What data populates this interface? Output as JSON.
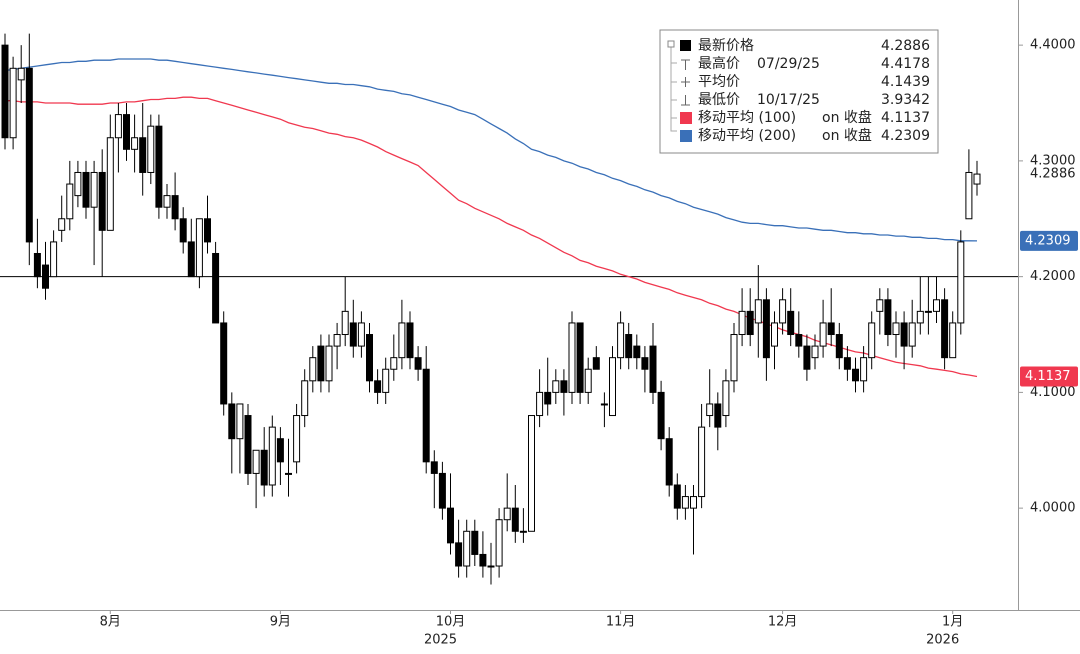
{
  "chart_data": {
    "type": "candlestick",
    "categories": [
      null,
      null,
      null,
      null,
      null,
      null,
      null,
      null,
      null,
      null,
      null,
      null,
      null,
      "8月",
      null,
      null,
      null,
      null,
      null,
      null,
      null,
      null,
      null,
      null,
      null,
      null,
      null,
      null,
      null,
      null,
      null,
      null,
      null,
      null,
      "9月",
      null,
      null,
      null,
      null,
      null,
      null,
      null,
      null,
      null,
      null,
      null,
      null,
      null,
      null,
      null,
      null,
      null,
      null,
      null,
      null,
      "10月",
      null,
      null,
      null,
      null,
      null,
      null,
      null,
      null,
      null,
      null,
      null,
      null,
      null,
      null,
      null,
      null,
      null,
      null,
      null,
      null,
      "11月",
      null,
      null,
      null,
      null,
      null,
      null,
      null,
      null,
      null,
      null,
      null,
      null,
      null,
      null,
      null,
      null,
      null,
      null,
      null,
      "12月",
      null,
      null,
      null,
      null,
      null,
      null,
      null,
      null,
      null,
      null,
      null,
      null,
      null,
      null,
      null,
      null,
      null,
      null,
      null,
      null,
      "1月",
      null,
      null,
      null
    ],
    "year_labels": [
      null,
      null,
      null,
      null,
      null,
      null,
      null,
      null,
      null,
      null,
      null,
      null,
      null,
      null,
      null,
      null,
      null,
      null,
      null,
      null,
      null,
      null,
      null,
      null,
      null,
      null,
      null,
      null,
      null,
      null,
      null,
      null,
      null,
      null,
      null,
      null,
      null,
      null,
      null,
      null,
      null,
      null,
      null,
      null,
      null,
      null,
      null,
      null,
      null,
      null,
      null,
      null,
      null,
      null,
      null,
      "2025",
      null,
      null,
      null,
      null,
      null,
      null,
      null,
      null,
      null,
      null,
      null,
      null,
      null,
      null,
      null,
      null,
      null,
      null,
      null,
      null,
      null,
      null,
      null,
      null,
      null,
      null,
      null,
      null,
      null,
      null,
      null,
      null,
      null,
      null,
      null,
      null,
      null,
      null,
      null,
      null,
      null,
      null,
      null,
      null,
      null,
      null,
      null,
      null,
      null,
      null,
      null,
      null,
      null,
      null,
      null,
      null,
      null,
      null,
      null,
      null,
      null,
      "2026",
      null,
      null,
      null
    ],
    "open": [
      4.4,
      4.32,
      4.37,
      4.38,
      4.22,
      4.21,
      4.2,
      4.24,
      4.25,
      4.27,
      4.29,
      4.26,
      4.29,
      4.24,
      4.32,
      4.34,
      4.31,
      4.32,
      4.29,
      4.33,
      4.26,
      4.27,
      4.25,
      4.23,
      4.2,
      4.25,
      4.22,
      4.16,
      4.09,
      4.06,
      4.08,
      4.03,
      4.05,
      4.02,
      4.06,
      4.03,
      4.04,
      4.08,
      4.11,
      4.14,
      4.11,
      4.14,
      4.15,
      4.16,
      4.14,
      4.15,
      4.11,
      4.1,
      4.12,
      4.13,
      4.16,
      4.13,
      4.12,
      4.04,
      4.03,
      4.0,
      3.97,
      3.95,
      3.98,
      3.96,
      3.95,
      3.95,
      3.99,
      4.0,
      3.98,
      3.98,
      4.08,
      4.1,
      4.1,
      4.11,
      4.1,
      4.16,
      4.1,
      4.13,
      4.09,
      4.08,
      4.13,
      4.15,
      4.14,
      4.13,
      4.14,
      4.1,
      4.06,
      4.02,
      4.0,
      4.0,
      4.01,
      4.08,
      4.09,
      4.08,
      4.11,
      4.15,
      4.17,
      4.16,
      4.18,
      4.14,
      4.16,
      4.17,
      4.15,
      4.14,
      4.13,
      4.14,
      4.16,
      4.15,
      4.13,
      4.12,
      4.11,
      4.13,
      4.17,
      4.18,
      4.15,
      4.16,
      4.14,
      4.16,
      4.17,
      4.17,
      4.18,
      4.13,
      4.16,
      4.25,
      4.28
    ],
    "high": [
      4.41,
      4.39,
      4.4,
      4.41,
      4.25,
      4.23,
      4.24,
      4.27,
      4.3,
      4.3,
      4.3,
      4.3,
      4.31,
      4.34,
      4.35,
      4.35,
      4.34,
      4.35,
      4.34,
      4.34,
      4.28,
      4.29,
      4.26,
      4.25,
      4.25,
      4.27,
      4.23,
      4.17,
      4.1,
      4.09,
      4.09,
      4.05,
      4.07,
      4.08,
      4.07,
      4.06,
      4.09,
      4.12,
      4.14,
      4.15,
      4.15,
      4.16,
      4.2,
      4.18,
      4.17,
      4.16,
      4.12,
      4.13,
      4.15,
      4.18,
      4.17,
      4.14,
      4.14,
      4.05,
      4.04,
      4.03,
      3.99,
      3.99,
      3.99,
      3.98,
      3.97,
      4.0,
      4.03,
      4.02,
      4.0,
      4.08,
      4.12,
      4.13,
      4.12,
      4.12,
      4.17,
      4.16,
      4.13,
      4.14,
      4.1,
      4.14,
      4.17,
      4.16,
      4.15,
      4.14,
      4.16,
      4.11,
      4.07,
      4.03,
      4.02,
      4.02,
      4.09,
      4.12,
      4.1,
      4.12,
      4.16,
      4.19,
      4.19,
      4.21,
      4.19,
      4.17,
      4.19,
      4.19,
      4.17,
      4.15,
      4.15,
      4.18,
      4.19,
      4.16,
      4.14,
      4.13,
      4.14,
      4.17,
      4.19,
      4.19,
      4.17,
      4.17,
      4.18,
      4.2,
      4.2,
      4.2,
      4.19,
      4.17,
      4.24,
      4.31,
      4.3
    ],
    "low": [
      4.31,
      4.31,
      4.35,
      4.21,
      4.19,
      4.18,
      4.2,
      4.23,
      4.24,
      4.26,
      4.25,
      4.21,
      4.2,
      4.24,
      4.29,
      4.3,
      4.29,
      4.27,
      4.28,
      4.25,
      4.25,
      4.24,
      4.22,
      4.2,
      4.19,
      4.22,
      4.16,
      4.08,
      4.03,
      4.03,
      4.02,
      4.0,
      4.01,
      4.01,
      4.02,
      4.01,
      4.03,
      4.07,
      4.1,
      4.1,
      4.1,
      4.12,
      4.14,
      4.13,
      4.13,
      4.1,
      4.09,
      4.09,
      4.11,
      4.12,
      4.12,
      4.11,
      4.03,
      4.0,
      3.99,
      3.96,
      3.94,
      3.94,
      3.95,
      3.94,
      3.934,
      3.94,
      3.98,
      3.97,
      3.97,
      3.98,
      4.07,
      4.08,
      4.09,
      4.08,
      4.09,
      4.09,
      4.09,
      4.12,
      4.07,
      4.08,
      4.12,
      4.12,
      4.12,
      4.1,
      4.09,
      4.05,
      4.01,
      3.99,
      3.99,
      3.96,
      4.0,
      4.07,
      4.05,
      4.07,
      4.1,
      4.14,
      4.14,
      4.13,
      4.11,
      4.12,
      4.15,
      4.14,
      4.13,
      4.11,
      4.12,
      4.13,
      4.14,
      4.12,
      4.11,
      4.1,
      4.1,
      4.12,
      4.15,
      4.14,
      4.13,
      4.12,
      4.13,
      4.15,
      4.15,
      4.16,
      4.12,
      4.13,
      4.15,
      4.25,
      4.27
    ],
    "close": [
      4.32,
      4.38,
      4.38,
      4.23,
      4.2,
      4.19,
      4.23,
      4.25,
      4.28,
      4.29,
      4.26,
      4.29,
      4.24,
      4.32,
      4.34,
      4.31,
      4.32,
      4.29,
      4.33,
      4.26,
      4.27,
      4.25,
      4.23,
      4.2,
      4.25,
      4.23,
      4.16,
      4.09,
      4.06,
      4.09,
      4.03,
      4.05,
      4.02,
      4.07,
      4.04,
      4.03,
      4.08,
      4.11,
      4.13,
      4.11,
      4.14,
      4.15,
      4.17,
      4.14,
      4.16,
      4.11,
      4.1,
      4.12,
      4.13,
      4.16,
      4.13,
      4.12,
      4.04,
      4.03,
      4.0,
      3.97,
      3.95,
      3.98,
      3.96,
      3.95,
      3.95,
      3.99,
      4.0,
      3.98,
      3.98,
      4.08,
      4.1,
      4.09,
      4.11,
      4.1,
      4.16,
      4.1,
      4.12,
      4.12,
      4.09,
      4.13,
      4.16,
      4.13,
      4.13,
      4.12,
      4.1,
      4.06,
      4.02,
      4.0,
      4.01,
      4.01,
      4.07,
      4.09,
      4.07,
      4.11,
      4.15,
      4.17,
      4.15,
      4.18,
      4.13,
      4.16,
      4.18,
      4.15,
      4.14,
      4.12,
      4.14,
      4.16,
      4.15,
      4.13,
      4.12,
      4.11,
      4.13,
      4.16,
      4.18,
      4.15,
      4.16,
      4.14,
      4.16,
      4.17,
      4.17,
      4.18,
      4.13,
      4.16,
      4.23,
      4.29,
      4.2886
    ],
    "series": [
      {
        "name": "移动平均 (100)",
        "color": "#f0384f",
        "values": [
          4.352,
          4.352,
          4.351,
          4.351,
          4.351,
          4.35,
          4.35,
          4.35,
          4.35,
          4.349,
          4.349,
          4.349,
          4.349,
          4.35,
          4.35,
          4.351,
          4.351,
          4.352,
          4.353,
          4.353,
          4.354,
          4.354,
          4.355,
          4.355,
          4.354,
          4.354,
          4.352,
          4.35,
          4.348,
          4.346,
          4.344,
          4.342,
          4.34,
          4.338,
          4.336,
          4.333,
          4.331,
          4.329,
          4.328,
          4.326,
          4.324,
          4.323,
          4.321,
          4.32,
          4.318,
          4.315,
          4.312,
          4.308,
          4.305,
          4.302,
          4.299,
          4.296,
          4.29,
          4.284,
          4.278,
          4.272,
          4.266,
          4.263,
          4.259,
          4.256,
          4.253,
          4.25,
          4.246,
          4.243,
          4.24,
          4.236,
          4.233,
          4.229,
          4.225,
          4.221,
          4.218,
          4.214,
          4.212,
          4.209,
          4.207,
          4.205,
          4.202,
          4.2,
          4.198,
          4.195,
          4.193,
          4.191,
          4.189,
          4.186,
          4.184,
          4.182,
          4.18,
          4.177,
          4.175,
          4.172,
          4.17,
          4.167,
          4.164,
          4.162,
          4.159,
          4.157,
          4.154,
          4.152,
          4.15,
          4.148,
          4.145,
          4.143,
          4.141,
          4.139,
          4.137,
          4.135,
          4.134,
          4.132,
          4.13,
          4.128,
          4.126,
          4.125,
          4.124,
          4.123,
          4.121,
          4.12,
          4.119,
          4.118,
          4.116,
          4.115,
          4.1137
        ]
      },
      {
        "name": "移动平均 (200)",
        "color": "#3a70b8",
        "values": [
          4.378,
          4.379,
          4.38,
          4.381,
          4.382,
          4.383,
          4.384,
          4.385,
          4.385,
          4.386,
          4.386,
          4.387,
          4.387,
          4.387,
          4.388,
          4.388,
          4.388,
          4.388,
          4.388,
          4.387,
          4.387,
          4.386,
          4.385,
          4.384,
          4.383,
          4.382,
          4.381,
          4.38,
          4.379,
          4.378,
          4.377,
          4.376,
          4.375,
          4.374,
          4.373,
          4.372,
          4.371,
          4.37,
          4.369,
          4.368,
          4.367,
          4.367,
          4.366,
          4.366,
          4.365,
          4.364,
          4.362,
          4.361,
          4.36,
          4.358,
          4.357,
          4.355,
          4.353,
          4.351,
          4.349,
          4.347,
          4.344,
          4.342,
          4.34,
          4.336,
          4.332,
          4.328,
          4.324,
          4.319,
          4.315,
          4.31,
          4.308,
          4.305,
          4.303,
          4.3,
          4.298,
          4.295,
          4.293,
          4.29,
          4.288,
          4.285,
          4.283,
          4.28,
          4.278,
          4.275,
          4.273,
          4.27,
          4.268,
          4.265,
          4.263,
          4.26,
          4.258,
          4.256,
          4.254,
          4.251,
          4.249,
          4.247,
          4.246,
          4.246,
          4.245,
          4.244,
          4.244,
          4.243,
          4.242,
          4.242,
          4.241,
          4.24,
          4.24,
          4.239,
          4.238,
          4.238,
          4.237,
          4.237,
          4.236,
          4.236,
          4.235,
          4.235,
          4.234,
          4.234,
          4.233,
          4.233,
          4.232,
          4.232,
          4.231,
          4.231,
          4.2309
        ]
      }
    ],
    "ma_basis": "on 收盘",
    "stats": [
      {
        "label": "最新价格"
      },
      {
        "label": "最高价",
        "date": "07/29/25",
        "value": 4.4178
      },
      {
        "label": "平均价",
        "value": 4.1439
      },
      {
        "label": "最低价",
        "date": "10/17/25",
        "value": 3.9342
      }
    ],
    "reference_line": 4.2,
    "ylim": [
      3.912,
      4.439
    ],
    "yticks": [
      {
        "value": 4.0,
        "label": "4.0000"
      },
      {
        "value": 4.1,
        "label": "4.1000"
      },
      {
        "value": 4.2,
        "label": "4.2000"
      },
      {
        "value": 4.3,
        "label": "4.3000"
      },
      {
        "value": 4.4,
        "label": "4.4000"
      }
    ],
    "up_color": "#ffffff",
    "down_color": "#000000"
  }
}
